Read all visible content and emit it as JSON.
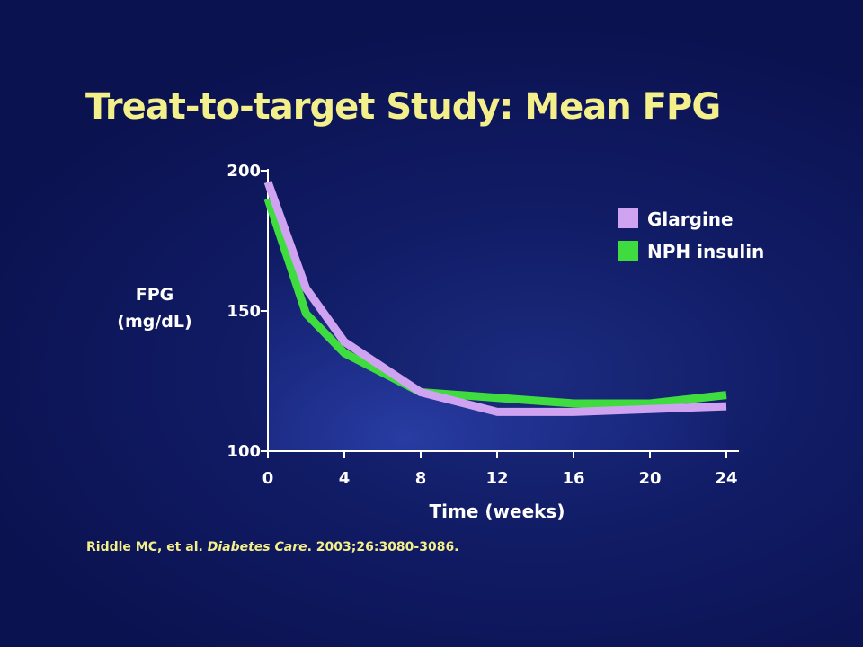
{
  "slide": {
    "title": "Treat-to-target Study: Mean FPG",
    "citation": {
      "authors": "Riddle MC, et al. ",
      "journal": "Diabetes Care",
      "details": ". 2003;26:3080-3086."
    }
  },
  "chart_data": {
    "type": "line",
    "title": "",
    "ylabel_lines": [
      "FPG",
      "(mg/dL)"
    ],
    "xlabel": "Time (weeks)",
    "xlim": [
      0,
      24
    ],
    "ylim": [
      100,
      200
    ],
    "xticks": [
      0,
      4,
      8,
      12,
      16,
      20,
      24
    ],
    "yticks": [
      100,
      150,
      200
    ],
    "grid": false,
    "legend_position": "top-right",
    "series": [
      {
        "name": "Glargine",
        "color": "#cfa3f0",
        "x": [
          0,
          2,
          4,
          8,
          12,
          16,
          20,
          24
        ],
        "y": [
          196,
          158,
          139,
          121,
          114,
          114,
          115,
          116
        ]
      },
      {
        "name": "NPH insulin",
        "color": "#3fdc3f",
        "x": [
          0,
          2,
          4,
          8,
          12,
          16,
          20,
          24
        ],
        "y": [
          190,
          149,
          135,
          121,
          119,
          117,
          117,
          120
        ]
      }
    ]
  }
}
